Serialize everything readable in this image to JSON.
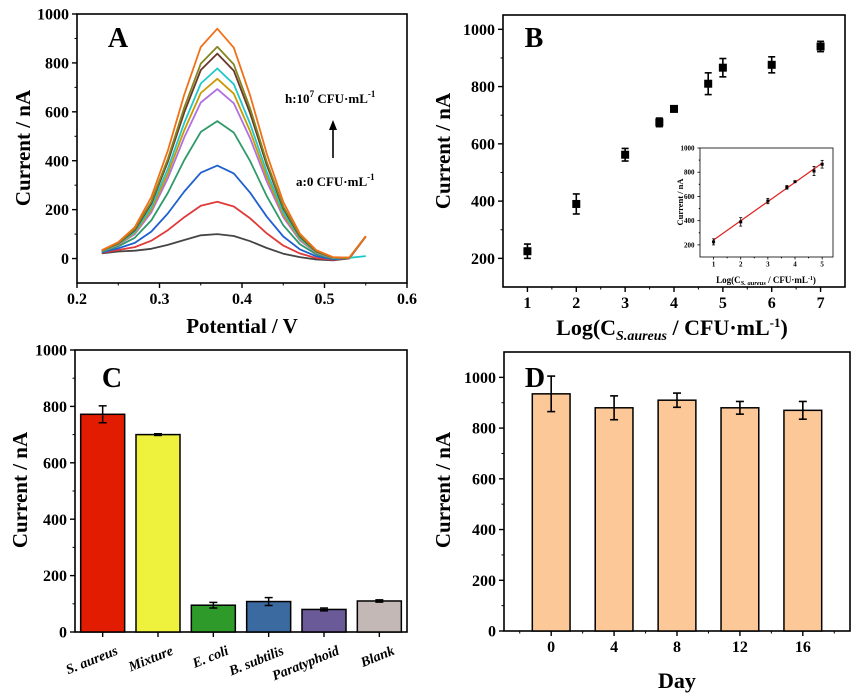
{
  "chart_data": [
    {
      "panel": "A",
      "type": "line",
      "xlabel": "Potential / V",
      "ylabel": "Current / nA",
      "xlim": [
        0.2,
        0.6
      ],
      "ylim": [
        -100,
        1000
      ],
      "xticks": [
        0.2,
        0.3,
        0.4,
        0.5,
        0.6
      ],
      "yticks": [
        0,
        200,
        400,
        600,
        800,
        1000
      ],
      "grid": false,
      "annotations": {
        "top": {
          "prefix": "h:10",
          "sup": "7",
          "mid": " CFU·mL",
          "sup2": "-1"
        },
        "bottom": {
          "prefix": "a:0 CFU·mL",
          "sup": "-1"
        },
        "arrow": "up"
      },
      "x": [
        0.23,
        0.25,
        0.27,
        0.29,
        0.31,
        0.33,
        0.35,
        0.37,
        0.39,
        0.41,
        0.43,
        0.45,
        0.47,
        0.49,
        0.51,
        0.53,
        0.55
      ],
      "series": [
        {
          "color": "#454545",
          "values": [
            21,
            29,
            32,
            40,
            56,
            76,
            95,
            100,
            92,
            71,
            43,
            20,
            6,
            -4,
            -7,
            0,
            90
          ]
        },
        {
          "color": "#e03a3a",
          "values": [
            23,
            35,
            47,
            73,
            116,
            169,
            216,
            232,
            213,
            164,
            103,
            53,
            21,
            2,
            -5,
            1,
            90
          ]
        },
        {
          "color": "#1f5fd0",
          "values": [
            25,
            42,
            64,
            110,
            184,
            274,
            351,
            380,
            348,
            269,
            171,
            90,
            38,
            9,
            -3,
            2,
            90
          ]
        },
        {
          "color": "#2e9a6a",
          "values": [
            28,
            50,
            85,
            156,
            268,
            403,
            518,
            562,
            515,
            398,
            255,
            136,
            59,
            17,
            0,
            2,
            91
          ]
        },
        {
          "color": "#b070e0",
          "values": [
            30,
            56,
            100,
            189,
            328,
            496,
            638,
            693,
            635,
            491,
            315,
            169,
            74,
            23,
            2,
            3,
            91
          ]
        },
        {
          "color": "#c89a00",
          "values": [
            31,
            58,
            105,
            199,
            347,
            525,
            677,
            735,
            674,
            520,
            334,
            179,
            79,
            25,
            3,
            3,
            91
          ]
        },
        {
          "color": "#20c8c8",
          "values": [
            31,
            60,
            109,
            210,
            367,
            555,
            716,
            777,
            713,
            550,
            354,
            190,
            83,
            27,
            3,
            3,
            10
          ]
        },
        {
          "color": "#6a3828",
          "values": [
            32,
            62,
            116,
            225,
            395,
            598,
            771,
            838,
            768,
            593,
            382,
            205,
            90,
            29,
            4,
            3,
            91
          ]
        },
        {
          "color": "#848420",
          "values": [
            32,
            64,
            120,
            232,
            407,
            618,
            797,
            866,
            794,
            613,
            394,
            212,
            94,
            31,
            4,
            3,
            91
          ]
        },
        {
          "color": "#f07018",
          "values": [
            34,
            67,
            128,
            251,
            441,
            671,
            865,
            940,
            862,
            666,
            428,
            231,
            102,
            34,
            6,
            4,
            91
          ]
        }
      ]
    },
    {
      "panel": "B",
      "type": "scatter",
      "xlabel": {
        "prefix": "Log(C",
        "sub": "S.aureus",
        "mid": " / CFU·mL",
        "sup": "-1",
        "suffix": ")"
      },
      "ylabel": "Current / nA",
      "xlim": [
        0.5,
        7.5
      ],
      "ylim": [
        100,
        1050
      ],
      "xticks": [
        1,
        2,
        3,
        4,
        5,
        6,
        7
      ],
      "yticks": [
        200,
        400,
        600,
        800,
        1000
      ],
      "grid": false,
      "x": [
        1,
        2,
        3,
        3.7,
        4,
        4.7,
        5,
        6,
        7
      ],
      "y": [
        225,
        390,
        562,
        675,
        722,
        810,
        866,
        876,
        940
      ],
      "error": [
        25,
        35,
        22,
        15,
        6,
        38,
        32,
        28,
        18
      ],
      "inset": {
        "type": "scatter",
        "xlabel": {
          "prefix": "Log(C",
          "sub": "S. aureus",
          "mid": " / CFU·mL",
          "sup": "-1",
          "suffix": ")"
        },
        "ylabel": "Current / nA",
        "xlim": [
          0.5,
          5.4
        ],
        "ylim": [
          100,
          1000
        ],
        "xticks": [
          1,
          2,
          3,
          4,
          5
        ],
        "yticks": [
          200,
          400,
          600,
          800,
          1000
        ],
        "x": [
          1,
          2,
          3,
          3.7,
          4,
          4.7,
          5
        ],
        "y": [
          225,
          390,
          562,
          675,
          722,
          810,
          866
        ],
        "error": [
          25,
          35,
          22,
          15,
          6,
          38,
          32
        ],
        "fit_line": {
          "x": [
            1,
            5
          ],
          "y": [
            240,
            875
          ],
          "color": "#e02020"
        }
      }
    },
    {
      "panel": "C",
      "type": "bar",
      "xlabel": "",
      "ylabel": "Current / nA",
      "ylim": [
        0,
        1000
      ],
      "yticks": [
        0,
        200,
        400,
        600,
        800,
        1000
      ],
      "grid": false,
      "categories": [
        "S. aureus",
        "Mixture",
        "E. coli",
        "B. subtilis",
        "Paratyphoid",
        "Blank"
      ],
      "values": [
        772,
        700,
        95,
        108,
        80,
        110
      ],
      "error": [
        30,
        3,
        10,
        14,
        5,
        4
      ],
      "colors": [
        "#e21c00",
        "#eef23c",
        "#2e9a2a",
        "#3a6aa0",
        "#6a5a98",
        "#c4b8b6"
      ]
    },
    {
      "panel": "D",
      "type": "bar",
      "xlabel": "Day",
      "ylabel": "Current / nA",
      "xlim": [
        -3,
        19
      ],
      "ylim": [
        0,
        1100
      ],
      "xticks": [
        0,
        4,
        8,
        12,
        16
      ],
      "yticks": [
        0,
        200,
        400,
        600,
        800,
        1000
      ],
      "grid": false,
      "x": [
        0,
        4,
        8,
        12,
        16
      ],
      "values": [
        935,
        880,
        910,
        880,
        870
      ],
      "error": [
        70,
        47,
        28,
        25,
        35
      ],
      "color": "#fcc898"
    }
  ]
}
